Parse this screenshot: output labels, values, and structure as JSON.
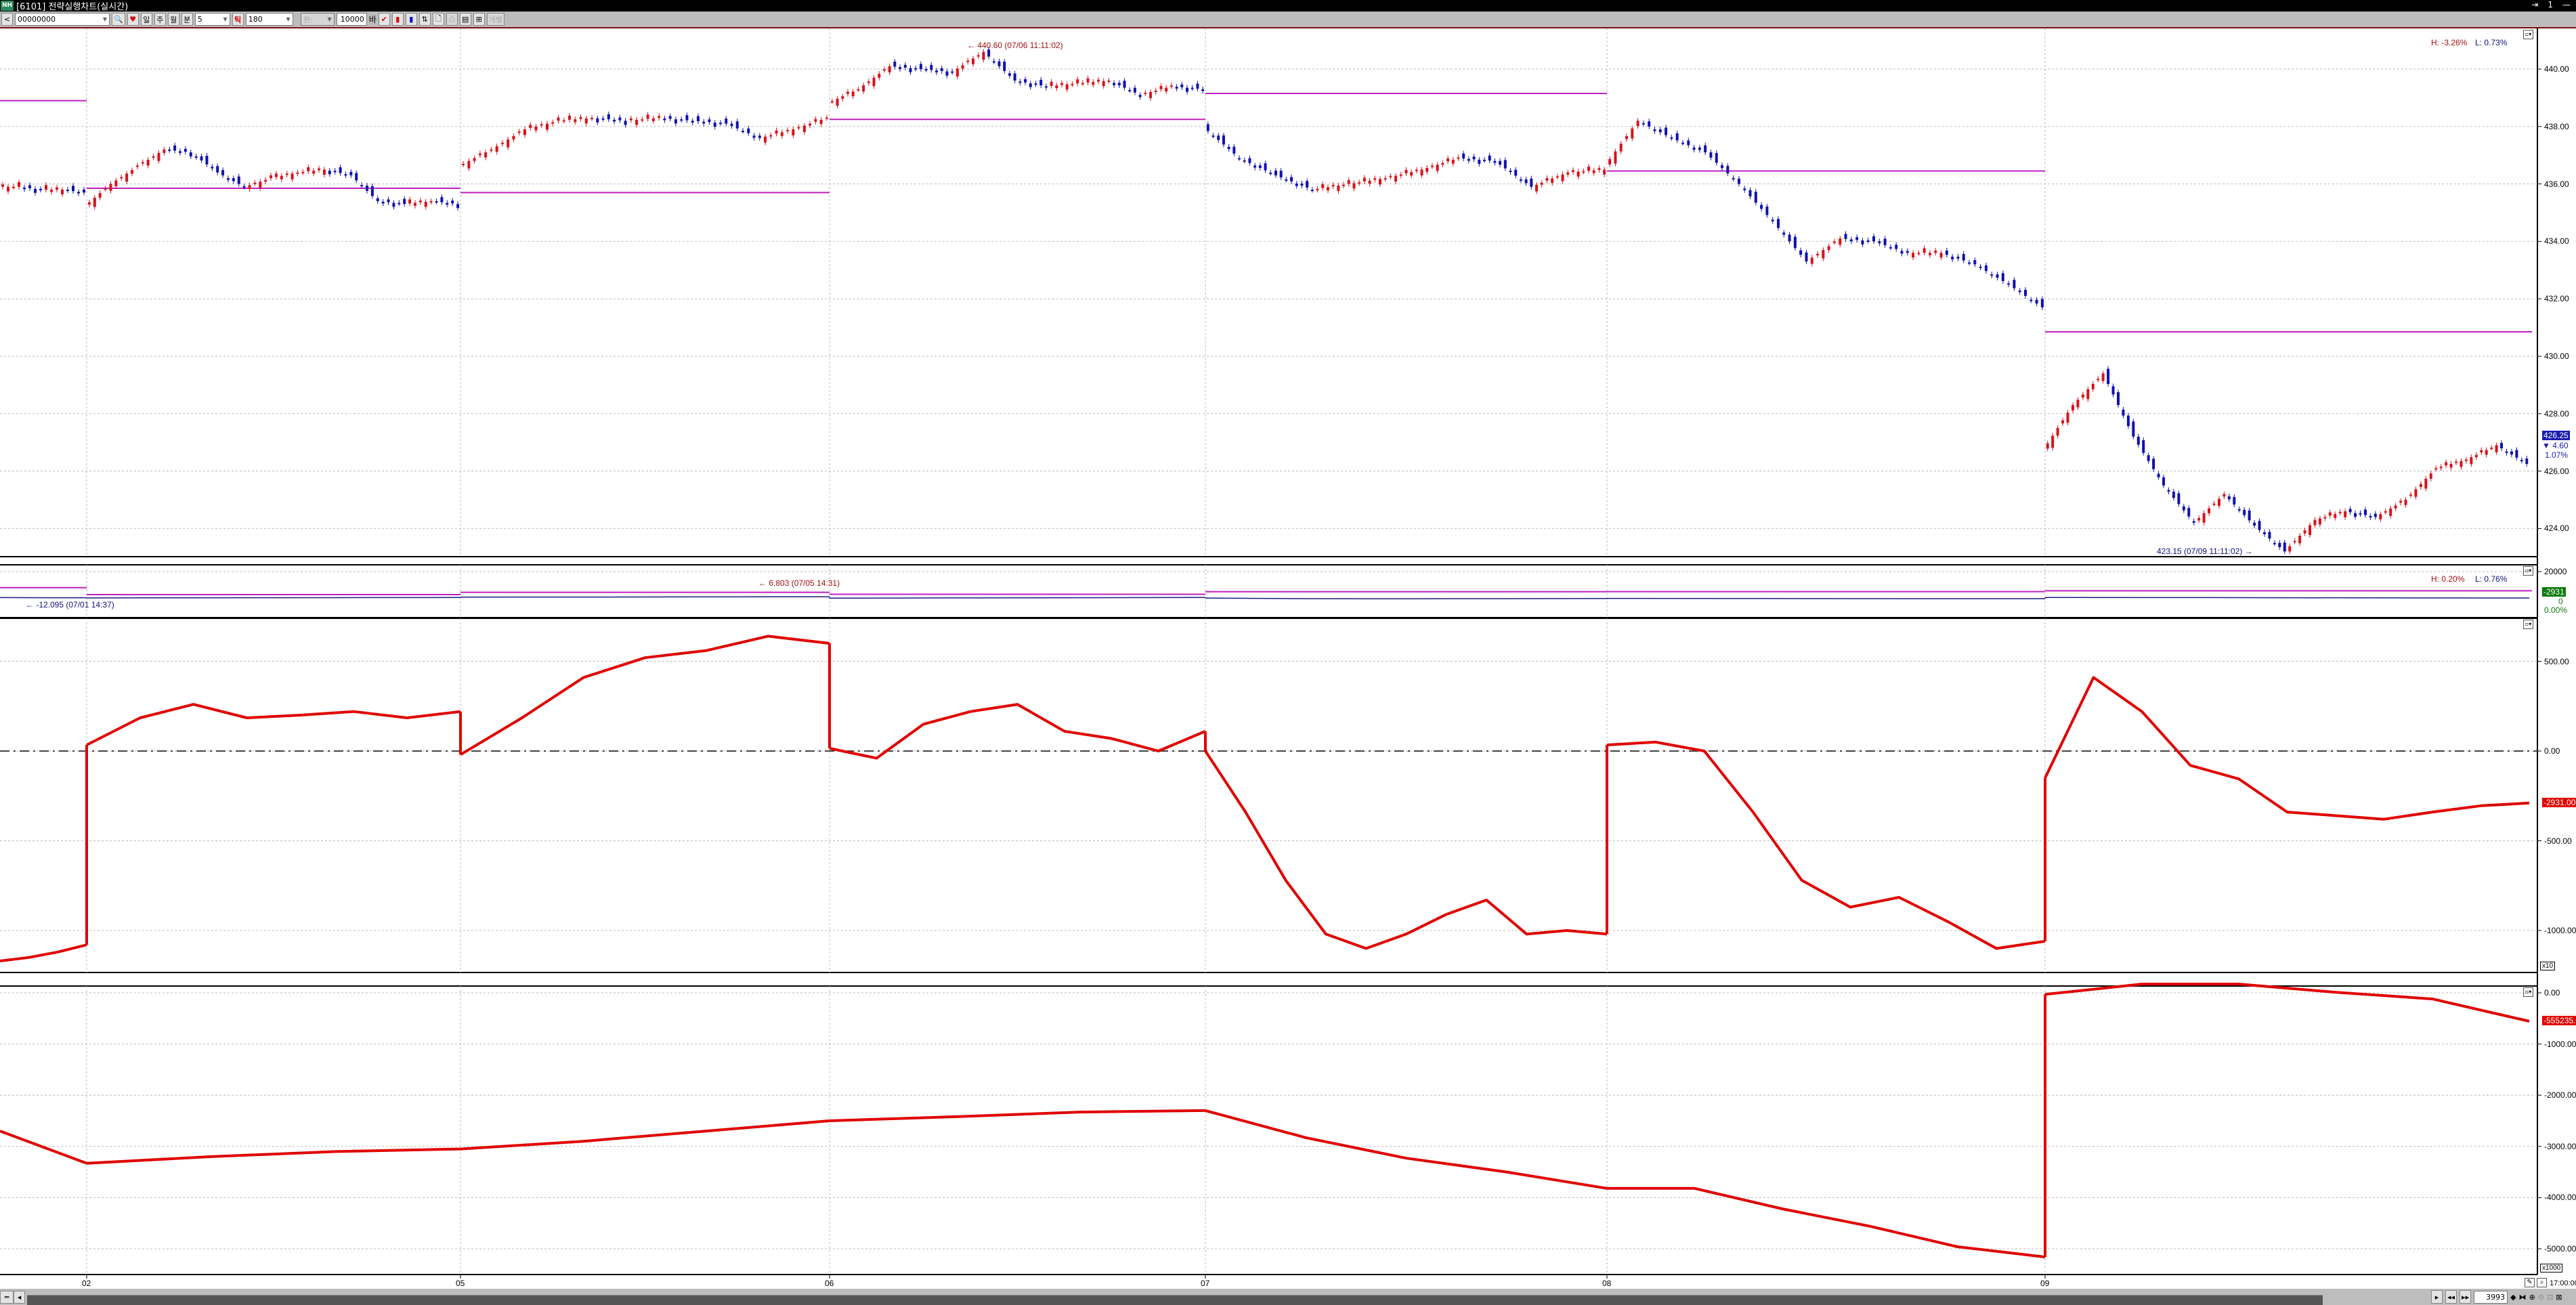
{
  "window": {
    "logo": "NH",
    "title": "[6101] 전략실행차트(실시간)",
    "right_icon": "exit-icon",
    "right_count": "1",
    "minimize": "—"
  },
  "toolbar": {
    "prev": "<",
    "code": "00000000",
    "period_buttons": [
      "일",
      "주",
      "월",
      "분"
    ],
    "minute_value": "5",
    "tick_button": "틱",
    "tick_value": "180",
    "disabled_combo": "편:",
    "count_value": "10000",
    "count_unit": "바",
    "individual": "개별"
  },
  "chart_data": {
    "type": "candlestick+line",
    "x_tick_labels": [
      "02",
      "05",
      "06",
      "07",
      "08",
      "09"
    ],
    "colors": {
      "up": "#d8121a",
      "down": "#1010b0",
      "reference": "#c020c0",
      "indicator": "#e00000"
    },
    "panels": [
      {
        "name": "price",
        "header": {
          "high": "H: -3.26%",
          "low": "L: 0.73%"
        },
        "y_ticks": [
          "440.00",
          "438.00",
          "436.00",
          "434.00",
          "432.00",
          "430.00",
          "428.00",
          "426.00",
          "424.00"
        ],
        "y_tick_values": [
          440,
          438,
          436,
          434,
          432,
          430,
          428,
          426,
          424
        ],
        "annotations": [
          {
            "text": "440.60 (07/06 11:11:02)",
            "type": "high"
          },
          {
            "text": "423.15 (07/09 11:11:02)",
            "type": "low"
          }
        ],
        "last": {
          "price": "426.25",
          "change": "▼ 4.60",
          "pct": "1.07%"
        },
        "values_by_session": [
          [
            435.9,
            435.9,
            435.8,
            435.8,
            435.7
          ],
          [
            435.2,
            436.0,
            436.6,
            437.2,
            437.1,
            436.4,
            435.9,
            436.2,
            436.4,
            436.5,
            436.3,
            435.4,
            435.3,
            435.4,
            435.3
          ],
          [
            436.6,
            437.2,
            437.9,
            438.2,
            438.3,
            438.2,
            438.3,
            438.2,
            438.1,
            437.6,
            437.9,
            438.3
          ],
          [
            438.8,
            439.3,
            440.1,
            440.0,
            439.9,
            440.6,
            439.6,
            439.4,
            439.5,
            439.6,
            439.1,
            439.4,
            439.3
          ],
          [
            438.0,
            436.9,
            436.3,
            435.8,
            436.0,
            436.2,
            436.5,
            436.9,
            436.8,
            435.9,
            436.4,
            436.5
          ],
          [
            436.6,
            438.2,
            437.6,
            437.1,
            436.0,
            434.7,
            433.3,
            434.1,
            434.0,
            433.6,
            433.6,
            433.2,
            432.5,
            431.7
          ],
          [
            426.7,
            428.3,
            429.4,
            427.2,
            425.5,
            424.2,
            425.2,
            424.1,
            423.2,
            424.3,
            424.6,
            424.4,
            425.0,
            426.1,
            426.4,
            426.9,
            426.25
          ]
        ],
        "reference_by_session": [
          438.9,
          435.85,
          435.7,
          438.25,
          439.15,
          436.45,
          430.85
        ]
      },
      {
        "name": "sub1",
        "header": {
          "high": "H: 0.20%",
          "low": "L: 0.76%"
        },
        "y_ticks": [
          "20000"
        ],
        "y_tick_values": [
          20000
        ],
        "annotations": [
          {
            "text": "6.803 (07/05 14:31)",
            "type": "high"
          },
          {
            "text": "-12.095 (07/01 14:37)",
            "type": "low"
          }
        ],
        "last": {
          "value": "-2931",
          "change": "0",
          "pct": "0.00%"
        },
        "values_by_session": [
          [
            -2600,
            -2700,
            -2700
          ],
          [
            -2900,
            -2800,
            -2700,
            -2600,
            -2500
          ],
          [
            -2200,
            -2100,
            -2000,
            -1900
          ],
          [
            -3100,
            -2900,
            -2700,
            -2500
          ],
          [
            -3000,
            -3500,
            -3600,
            -3500,
            -3400
          ],
          [
            -3300,
            -3400,
            -3500,
            -3500
          ],
          [
            -2500,
            -2600,
            -2800,
            -2931
          ]
        ],
        "reference_by_session": [
          6000,
          0,
          2000,
          300,
          2500,
          2600,
          3300
        ]
      },
      {
        "name": "sub2",
        "scale": "x10",
        "y_ticks": [
          "500.00",
          "0.00",
          "-500.00",
          "-1000.00"
        ],
        "y_tick_values": [
          500,
          0,
          -500,
          -1000
        ],
        "zero_line": true,
        "last": {
          "value": "-2931.00"
        },
        "values_by_session": [
          [
            -1170,
            -1150,
            -1120,
            -1080
          ],
          [
            34,
            185,
            260,
            185,
            200,
            220,
            185,
            220
          ],
          [
            -20,
            185,
            410,
            520,
            560,
            640,
            600
          ],
          [
            15,
            -40,
            150,
            220,
            260,
            110,
            70,
            0,
            110
          ],
          [
            0,
            -340,
            -720,
            -1020,
            -1100,
            -1020,
            -910,
            -830,
            -1020,
            -1000,
            -1020
          ],
          [
            34,
            50,
            0,
            -340,
            -720,
            -870,
            -815,
            -950,
            -1100,
            -1060
          ],
          [
            -150,
            410,
            220,
            -80,
            -155,
            -340,
            -360,
            -380,
            -340,
            -305,
            -290
          ]
        ]
      },
      {
        "name": "sub3",
        "scale": "x1000",
        "y_ticks": [
          "0.00",
          "-1000.00",
          "-2000.00",
          "-3000.00",
          "-4000.00",
          "-5000.00"
        ],
        "y_tick_values": [
          0,
          -1000,
          -2000,
          -3000,
          -4000,
          -5000
        ],
        "last": {
          "value": "-555235.0"
        },
        "values_by_session": [
          [
            -2700,
            -3330
          ],
          [
            -3330,
            -3200,
            -3100,
            -3050
          ],
          [
            -3050,
            -2900,
            -2700,
            -2500
          ],
          [
            -2500,
            -2420,
            -2330,
            -2300
          ],
          [
            -2300,
            -2830,
            -3230,
            -3500,
            -3820
          ],
          [
            -3820,
            -3820,
            -4220,
            -4560,
            -4960,
            -5160
          ],
          [
            -30,
            170,
            170,
            10,
            -120,
            -555
          ]
        ]
      }
    ]
  },
  "bottom": {
    "time": "17:00:00",
    "count": "3993"
  }
}
